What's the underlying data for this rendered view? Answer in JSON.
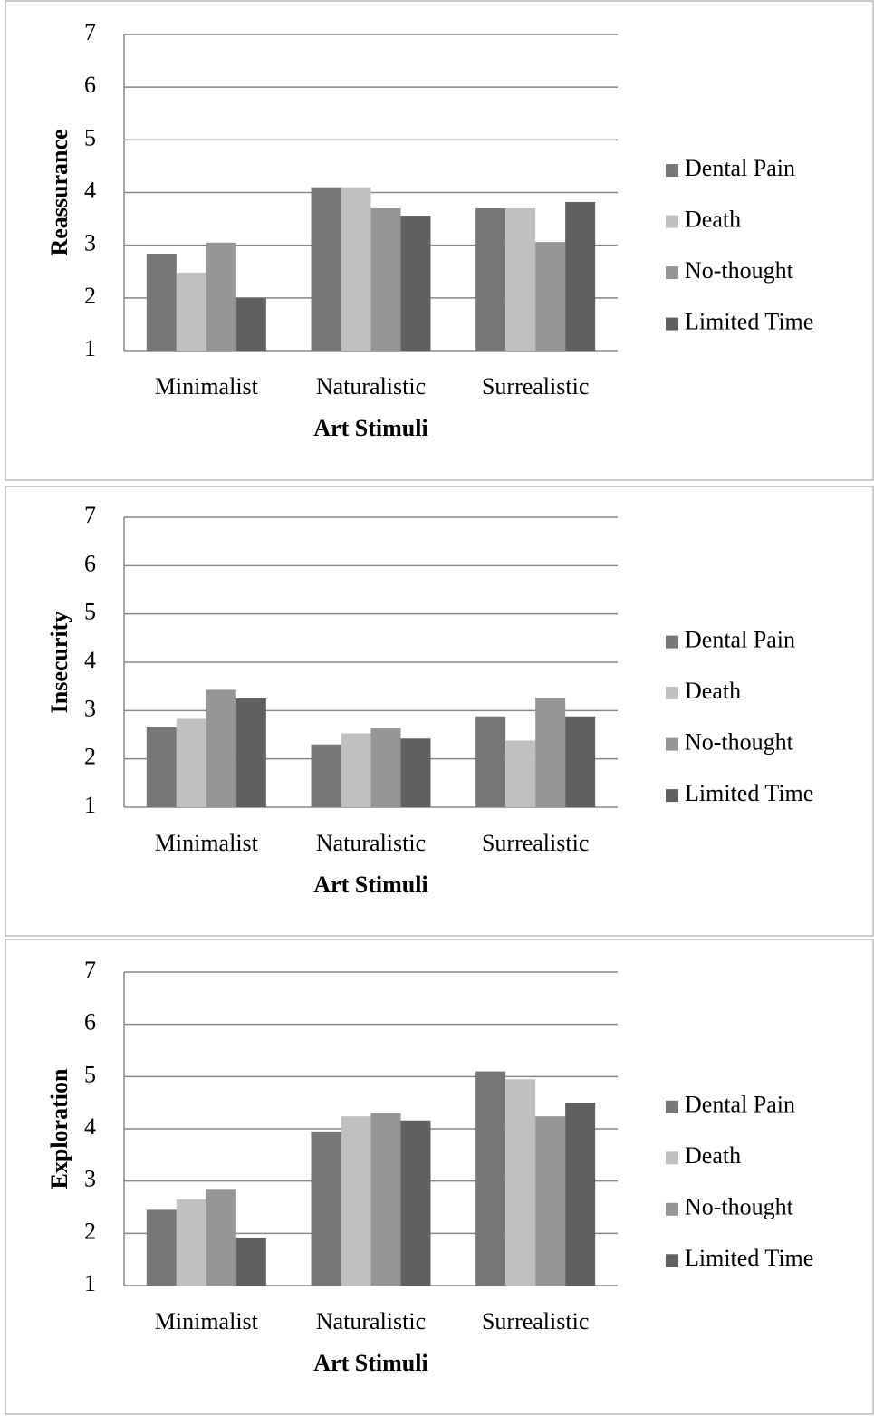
{
  "chart_data": [
    {
      "type": "bar",
      "y_label": "Reassurance",
      "x_label": "Art Stimuli",
      "categories": [
        "Minimalist",
        "Naturalistic",
        "Surrealistic"
      ],
      "series": [
        {
          "name": "Dental Pain",
          "color": "#777777",
          "values": [
            2.84,
            4.1,
            3.7
          ]
        },
        {
          "name": "Death",
          "color": "#c0c0c0",
          "values": [
            2.48,
            4.1,
            3.7
          ]
        },
        {
          "name": "No-thought",
          "color": "#969696",
          "values": [
            3.05,
            3.7,
            3.06
          ]
        },
        {
          "name": "Limited Time",
          "color": "#606060",
          "values": [
            2.0,
            3.56,
            3.82
          ]
        }
      ],
      "ylim": [
        1,
        7
      ],
      "yticks": [
        1,
        2,
        3,
        4,
        5,
        6,
        7
      ],
      "grid": true,
      "legend": "right"
    },
    {
      "type": "bar",
      "y_label": "Insecurity",
      "x_label": "Art Stimuli",
      "categories": [
        "Minimalist",
        "Naturalistic",
        "Surrealistic"
      ],
      "series": [
        {
          "name": "Dental Pain",
          "color": "#777777",
          "values": [
            2.65,
            2.3,
            2.88
          ]
        },
        {
          "name": "Death",
          "color": "#c0c0c0",
          "values": [
            2.83,
            2.53,
            2.38
          ]
        },
        {
          "name": "No-thought",
          "color": "#969696",
          "values": [
            3.43,
            2.63,
            3.27
          ]
        },
        {
          "name": "Limited Time",
          "color": "#606060",
          "values": [
            3.25,
            2.42,
            2.88
          ]
        }
      ],
      "ylim": [
        1,
        7
      ],
      "yticks": [
        1,
        2,
        3,
        4,
        5,
        6,
        7
      ],
      "grid": true,
      "legend": "right"
    },
    {
      "type": "bar",
      "y_label": "Exploration",
      "x_label": "Art Stimuli",
      "categories": [
        "Minimalist",
        "Naturalistic",
        "Surrealistic"
      ],
      "series": [
        {
          "name": "Dental Pain",
          "color": "#777777",
          "values": [
            2.45,
            3.95,
            5.1
          ]
        },
        {
          "name": "Death",
          "color": "#c0c0c0",
          "values": [
            2.65,
            4.24,
            4.95
          ]
        },
        {
          "name": "No-thought",
          "color": "#969696",
          "values": [
            2.85,
            4.3,
            4.24
          ]
        },
        {
          "name": "Limited Time",
          "color": "#606060",
          "values": [
            1.92,
            4.16,
            4.5
          ]
        }
      ],
      "ylim": [
        1,
        7
      ],
      "yticks": [
        1,
        2,
        3,
        4,
        5,
        6,
        7
      ],
      "grid": true,
      "legend": "right"
    }
  ]
}
